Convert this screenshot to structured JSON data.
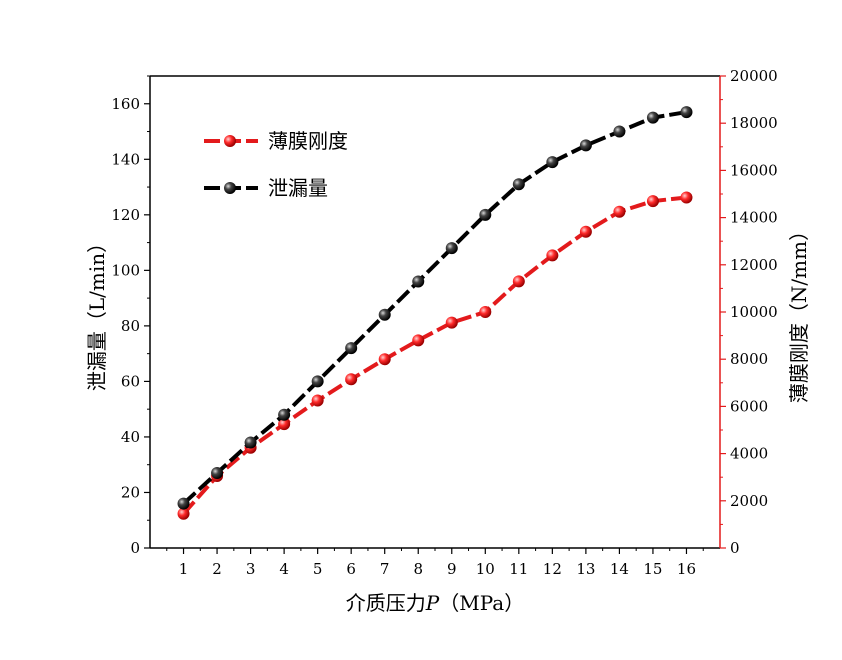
{
  "chart_data": {
    "type": "line",
    "x": [
      1,
      2,
      3,
      4,
      5,
      6,
      7,
      8,
      9,
      10,
      11,
      12,
      13,
      14,
      15,
      16
    ],
    "xlabel": "介质压力P（MPa）",
    "xlabel_main": "介质压力",
    "xlabel_var": "P",
    "xlabel_unit": "（MPa）",
    "xlim": [
      0,
      17
    ],
    "y_left": {
      "label": "泄漏量（L/min）",
      "lim": [
        0,
        170
      ],
      "ticks": [
        0,
        20,
        40,
        60,
        80,
        100,
        120,
        140,
        160
      ]
    },
    "y_right": {
      "label": "薄膜刚度（N/mm）",
      "lim": [
        0,
        20000
      ],
      "ticks": [
        0,
        2000,
        4000,
        6000,
        8000,
        10000,
        12000,
        14000,
        16000,
        18000,
        20000
      ],
      "color": "#e31a1c"
    },
    "series": [
      {
        "name": "薄膜刚度",
        "axis": "right",
        "color": "#e31a1c",
        "values": [
          1450,
          3050,
          4250,
          5250,
          6250,
          7150,
          8000,
          8800,
          9550,
          10000,
          11300,
          12400,
          13400,
          14250,
          14700,
          14850
        ]
      },
      {
        "name": "泄漏量",
        "axis": "left",
        "color": "#000000",
        "values": [
          16,
          27,
          38,
          48,
          60,
          72,
          84,
          96,
          108,
          120,
          131,
          139,
          145,
          150,
          155,
          157
        ]
      }
    ],
    "legend": {
      "placement": "top-left"
    },
    "grid": false
  }
}
